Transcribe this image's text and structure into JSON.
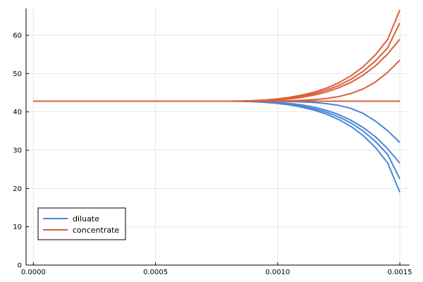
{
  "chart_data": {
    "type": "line",
    "title": "",
    "xlabel": "",
    "ylabel": "",
    "xlim": [
      -3e-05,
      0.00154
    ],
    "ylim": [
      0,
      67
    ],
    "x_ticks": [
      {
        "value": 0.0,
        "label": "0.0000"
      },
      {
        "value": 0.0005,
        "label": "0.0005"
      },
      {
        "value": 0.001,
        "label": "0.0010"
      },
      {
        "value": 0.0015,
        "label": "0.0015"
      }
    ],
    "y_ticks": [
      {
        "value": 0,
        "label": "0"
      },
      {
        "value": 10,
        "label": "10"
      },
      {
        "value": 20,
        "label": "20"
      },
      {
        "value": 30,
        "label": "30"
      },
      {
        "value": 40,
        "label": "40"
      },
      {
        "value": 50,
        "label": "50"
      },
      {
        "value": 60,
        "label": "60"
      }
    ],
    "grid": true,
    "legend": {
      "placement": "bottom-left",
      "entries": [
        {
          "label": "diluate",
          "color": "#4a86d8"
        },
        {
          "label": "concentrate",
          "color": "#d9603c"
        }
      ]
    },
    "x": [
      0.0,
      5e-05,
      0.0001,
      0.00015,
      0.0002,
      0.00025,
      0.0003,
      0.00035,
      0.0004,
      0.00045,
      0.0005,
      0.00055,
      0.0006,
      0.00065,
      0.0007,
      0.00075,
      0.0008,
      0.00085,
      0.0009,
      0.00095,
      0.001,
      0.00105,
      0.0011,
      0.00115,
      0.0012,
      0.00125,
      0.0013,
      0.00135,
      0.0014,
      0.00145,
      0.0015
    ],
    "series": [
      {
        "group": "diluate",
        "color": "#4a86d8",
        "values": [
          42.8,
          42.8,
          42.8,
          42.8,
          42.8,
          42.8,
          42.8,
          42.8,
          42.8,
          42.8,
          42.8,
          42.8,
          42.8,
          42.8,
          42.8,
          42.8,
          42.8,
          42.8,
          42.8,
          42.78,
          42.75,
          42.7,
          42.6,
          42.44,
          42.16,
          41.7,
          40.9,
          39.6,
          37.6,
          35.1,
          32.0
        ]
      },
      {
        "group": "diluate",
        "color": "#4a86d8",
        "values": [
          42.8,
          42.8,
          42.8,
          42.8,
          42.8,
          42.8,
          42.8,
          42.8,
          42.8,
          42.8,
          42.8,
          42.8,
          42.8,
          42.8,
          42.8,
          42.8,
          42.8,
          42.8,
          42.74,
          42.63,
          42.45,
          42.2,
          41.8,
          41.22,
          40.4,
          39.3,
          37.8,
          35.9,
          33.5,
          30.4,
          26.6
        ]
      },
      {
        "group": "diluate",
        "color": "#4a86d8",
        "values": [
          42.8,
          42.8,
          42.8,
          42.8,
          42.8,
          42.8,
          42.8,
          42.8,
          42.8,
          42.8,
          42.8,
          42.8,
          42.8,
          42.8,
          42.8,
          42.8,
          42.8,
          42.78,
          42.7,
          42.55,
          42.3,
          41.95,
          41.45,
          40.8,
          39.9,
          38.7,
          37.1,
          35.0,
          32.3,
          28.9,
          22.5
        ]
      },
      {
        "group": "diluate",
        "color": "#4a86d8",
        "values": [
          42.8,
          42.8,
          42.8,
          42.8,
          42.8,
          42.8,
          42.8,
          42.8,
          42.8,
          42.8,
          42.8,
          42.8,
          42.8,
          42.8,
          42.8,
          42.8,
          42.8,
          42.76,
          42.66,
          42.48,
          42.2,
          41.8,
          41.2,
          40.45,
          39.4,
          38.0,
          36.2,
          33.8,
          30.7,
          26.7,
          19.0
        ]
      },
      {
        "group": "diluate",
        "color": "#4a86d8",
        "values": [
          42.8,
          42.8,
          42.8,
          42.8,
          42.8,
          42.8,
          42.8,
          42.8,
          42.8,
          42.8,
          42.8,
          42.8,
          42.8,
          42.8,
          42.8,
          42.8,
          42.8,
          42.8,
          42.8,
          42.8,
          42.8,
          42.8,
          42.8,
          42.8,
          42.8,
          42.8,
          42.8,
          42.8,
          42.8,
          42.8,
          42.8
        ]
      },
      {
        "group": "concentrate",
        "color": "#d9603c",
        "values": [
          42.8,
          42.8,
          42.8,
          42.8,
          42.8,
          42.8,
          42.8,
          42.8,
          42.8,
          42.8,
          42.8,
          42.8,
          42.8,
          42.8,
          42.8,
          42.8,
          42.8,
          42.8,
          42.8,
          42.8,
          42.8,
          42.8,
          42.8,
          42.8,
          42.8,
          42.8,
          42.8,
          42.8,
          42.8,
          42.8,
          42.8
        ]
      },
      {
        "group": "concentrate",
        "color": "#d9603c",
        "values": [
          42.8,
          42.8,
          42.8,
          42.8,
          42.8,
          42.8,
          42.8,
          42.8,
          42.8,
          42.8,
          42.8,
          42.8,
          42.8,
          42.8,
          42.8,
          42.8,
          42.8,
          42.8,
          42.8,
          42.82,
          42.86,
          42.92,
          43.02,
          43.2,
          43.5,
          44.0,
          44.8,
          46.0,
          47.8,
          50.3,
          53.5
        ]
      },
      {
        "group": "concentrate",
        "color": "#d9603c",
        "values": [
          42.8,
          42.8,
          42.8,
          42.8,
          42.8,
          42.8,
          42.8,
          42.8,
          42.8,
          42.8,
          42.8,
          42.8,
          42.8,
          42.8,
          42.8,
          42.8,
          42.8,
          42.8,
          42.86,
          42.97,
          43.15,
          43.4,
          43.8,
          44.4,
          45.2,
          46.3,
          47.7,
          49.6,
          52.0,
          55.1,
          59.0
        ]
      },
      {
        "group": "concentrate",
        "color": "#d9603c",
        "values": [
          42.8,
          42.8,
          42.8,
          42.8,
          42.8,
          42.8,
          42.8,
          42.8,
          42.8,
          42.8,
          42.8,
          42.8,
          42.8,
          42.8,
          42.8,
          42.8,
          42.8,
          42.82,
          42.9,
          43.05,
          43.3,
          43.65,
          44.15,
          44.8,
          45.7,
          46.9,
          48.5,
          50.6,
          53.3,
          56.7,
          63.2
        ]
      },
      {
        "group": "concentrate",
        "color": "#d9603c",
        "values": [
          42.8,
          42.8,
          42.8,
          42.8,
          42.8,
          42.8,
          42.8,
          42.8,
          42.8,
          42.8,
          42.8,
          42.8,
          42.8,
          42.8,
          42.8,
          42.8,
          42.8,
          42.84,
          42.94,
          43.12,
          43.4,
          43.8,
          44.4,
          45.15,
          46.2,
          47.6,
          49.4,
          51.8,
          54.9,
          58.9,
          66.6
        ]
      }
    ]
  }
}
